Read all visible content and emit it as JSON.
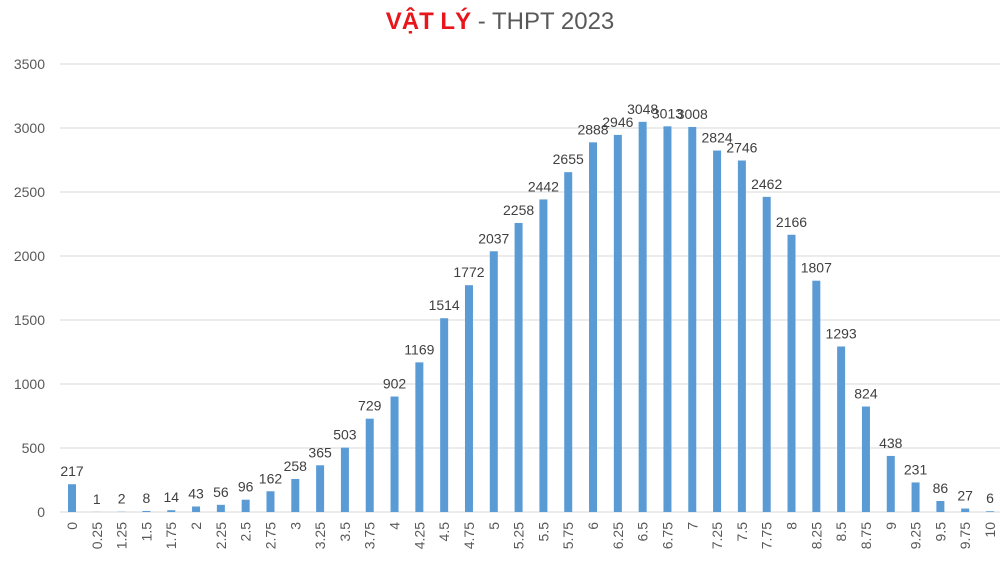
{
  "chart_data": {
    "type": "bar",
    "title_highlight": "VẬT LÝ",
    "title_rest": " - THPT 2023",
    "categories": [
      "0",
      "0.25",
      "1.25",
      "1.5",
      "1.75",
      "2",
      "2.25",
      "2.5",
      "2.75",
      "3",
      "3.25",
      "3.5",
      "3.75",
      "4",
      "4.25",
      "4.5",
      "4.75",
      "5",
      "5.25",
      "5.5",
      "5.75",
      "6",
      "6.25",
      "6.5",
      "6.75",
      "7",
      "7.25",
      "7.5",
      "7.75",
      "8",
      "8.25",
      "8.5",
      "8.75",
      "9",
      "9.25",
      "9.5",
      "9.75",
      "10"
    ],
    "values": [
      217,
      1,
      2,
      8,
      14,
      43,
      56,
      96,
      162,
      258,
      365,
      503,
      729,
      902,
      1169,
      1514,
      1772,
      2037,
      2258,
      2442,
      2655,
      2888,
      2946,
      3048,
      3013,
      3008,
      2824,
      2746,
      2462,
      2166,
      1807,
      1293,
      824,
      438,
      231,
      86,
      27,
      6
    ],
    "yticks": [
      "0",
      "500",
      "1000",
      "1500",
      "2000",
      "2500",
      "3000",
      "3500"
    ],
    "ylim": [
      0,
      3500
    ],
    "grid": true,
    "bar_color": "#5b9bd5",
    "title_highlight_color": "#e8161b"
  }
}
